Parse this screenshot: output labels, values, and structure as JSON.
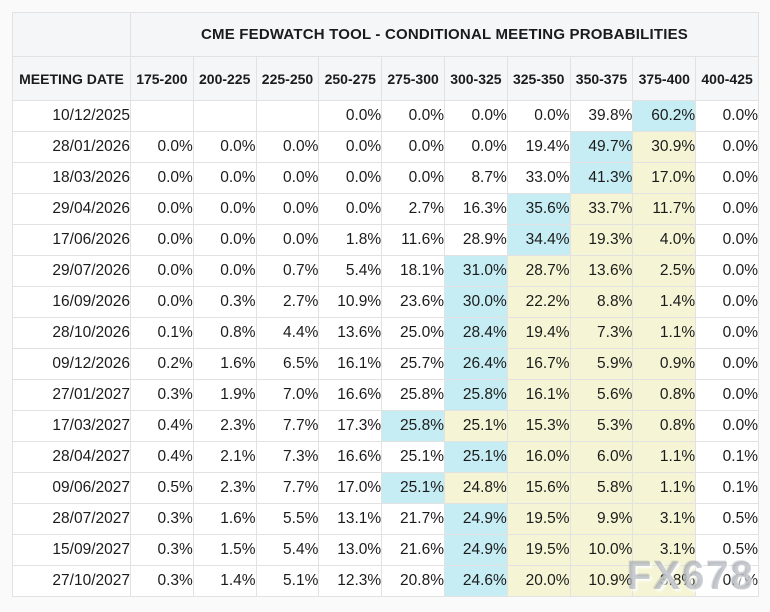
{
  "page": {
    "watermark": "FX678"
  },
  "colors": {
    "highlight_max": "#c6edf3",
    "highlight_tail": "#f5f5d6",
    "header_background": "#f5f6f7",
    "cell_background": "#ffffff",
    "border": "#e2e2e2",
    "text": "#1b1b1b"
  },
  "table": {
    "title": "CME FEDWATCH TOOL - CONDITIONAL MEETING PROBABILITIES",
    "date_header": "MEETING DATE",
    "rate_headers": [
      "175-200",
      "200-225",
      "225-250",
      "250-275",
      "275-300",
      "300-325",
      "325-350",
      "350-375",
      "375-400",
      "400-425"
    ],
    "rows": [
      {
        "date": "10/12/2025",
        "values": [
          "",
          "",
          "",
          "0.0%",
          "0.0%",
          "0.0%",
          "0.0%",
          "39.8%",
          "60.2%",
          "0.0%"
        ],
        "highlights": [
          null,
          null,
          null,
          null,
          null,
          null,
          null,
          null,
          "cyan",
          null
        ]
      },
      {
        "date": "28/01/2026",
        "values": [
          "0.0%",
          "0.0%",
          "0.0%",
          "0.0%",
          "0.0%",
          "0.0%",
          "19.4%",
          "49.7%",
          "30.9%",
          "0.0%"
        ],
        "highlights": [
          null,
          null,
          null,
          null,
          null,
          null,
          null,
          "cyan",
          "yellow",
          null
        ]
      },
      {
        "date": "18/03/2026",
        "values": [
          "0.0%",
          "0.0%",
          "0.0%",
          "0.0%",
          "0.0%",
          "8.7%",
          "33.0%",
          "41.3%",
          "17.0%",
          "0.0%"
        ],
        "highlights": [
          null,
          null,
          null,
          null,
          null,
          null,
          null,
          "cyan",
          "yellow",
          null
        ]
      },
      {
        "date": "29/04/2026",
        "values": [
          "0.0%",
          "0.0%",
          "0.0%",
          "0.0%",
          "2.7%",
          "16.3%",
          "35.6%",
          "33.7%",
          "11.7%",
          "0.0%"
        ],
        "highlights": [
          null,
          null,
          null,
          null,
          null,
          null,
          "cyan",
          "yellow",
          "yellow",
          null
        ]
      },
      {
        "date": "17/06/2026",
        "values": [
          "0.0%",
          "0.0%",
          "0.0%",
          "1.8%",
          "11.6%",
          "28.9%",
          "34.4%",
          "19.3%",
          "4.0%",
          "0.0%"
        ],
        "highlights": [
          null,
          null,
          null,
          null,
          null,
          null,
          "cyan",
          "yellow",
          "yellow",
          null
        ]
      },
      {
        "date": "29/07/2026",
        "values": [
          "0.0%",
          "0.0%",
          "0.7%",
          "5.4%",
          "18.1%",
          "31.0%",
          "28.7%",
          "13.6%",
          "2.5%",
          "0.0%"
        ],
        "highlights": [
          null,
          null,
          null,
          null,
          null,
          "cyan",
          "yellow",
          "yellow",
          "yellow",
          null
        ]
      },
      {
        "date": "16/09/2026",
        "values": [
          "0.0%",
          "0.3%",
          "2.7%",
          "10.9%",
          "23.6%",
          "30.0%",
          "22.2%",
          "8.8%",
          "1.4%",
          "0.0%"
        ],
        "highlights": [
          null,
          null,
          null,
          null,
          null,
          "cyan",
          "yellow",
          "yellow",
          "yellow",
          null
        ]
      },
      {
        "date": "28/10/2026",
        "values": [
          "0.1%",
          "0.8%",
          "4.4%",
          "13.6%",
          "25.0%",
          "28.4%",
          "19.4%",
          "7.3%",
          "1.1%",
          "0.0%"
        ],
        "highlights": [
          null,
          null,
          null,
          null,
          null,
          "cyan",
          "yellow",
          "yellow",
          "yellow",
          null
        ]
      },
      {
        "date": "09/12/2026",
        "values": [
          "0.2%",
          "1.6%",
          "6.5%",
          "16.1%",
          "25.7%",
          "26.4%",
          "16.7%",
          "5.9%",
          "0.9%",
          "0.0%"
        ],
        "highlights": [
          null,
          null,
          null,
          null,
          null,
          "cyan",
          "yellow",
          "yellow",
          "yellow",
          null
        ]
      },
      {
        "date": "27/01/2027",
        "values": [
          "0.3%",
          "1.9%",
          "7.0%",
          "16.6%",
          "25.8%",
          "25.8%",
          "16.1%",
          "5.6%",
          "0.8%",
          "0.0%"
        ],
        "highlights": [
          null,
          null,
          null,
          null,
          null,
          "cyan",
          "yellow",
          "yellow",
          "yellow",
          null
        ]
      },
      {
        "date": "17/03/2027",
        "values": [
          "0.4%",
          "2.3%",
          "7.7%",
          "17.3%",
          "25.8%",
          "25.1%",
          "15.3%",
          "5.3%",
          "0.8%",
          "0.0%"
        ],
        "highlights": [
          null,
          null,
          null,
          null,
          "cyan",
          "yellow",
          "yellow",
          "yellow",
          "yellow",
          null
        ]
      },
      {
        "date": "28/04/2027",
        "values": [
          "0.4%",
          "2.1%",
          "7.3%",
          "16.6%",
          "25.1%",
          "25.1%",
          "16.0%",
          "6.0%",
          "1.1%",
          "0.1%"
        ],
        "highlights": [
          null,
          null,
          null,
          null,
          null,
          "cyan",
          "yellow",
          "yellow",
          "yellow",
          null
        ]
      },
      {
        "date": "09/06/2027",
        "values": [
          "0.5%",
          "2.3%",
          "7.7%",
          "17.0%",
          "25.1%",
          "24.8%",
          "15.6%",
          "5.8%",
          "1.1%",
          "0.1%"
        ],
        "highlights": [
          null,
          null,
          null,
          null,
          "cyan",
          "yellow",
          "yellow",
          "yellow",
          "yellow",
          null
        ]
      },
      {
        "date": "28/07/2027",
        "values": [
          "0.3%",
          "1.6%",
          "5.5%",
          "13.1%",
          "21.7%",
          "24.9%",
          "19.5%",
          "9.9%",
          "3.1%",
          "0.5%"
        ],
        "highlights": [
          null,
          null,
          null,
          null,
          null,
          "cyan",
          "yellow",
          "yellow",
          "yellow",
          null
        ]
      },
      {
        "date": "15/09/2027",
        "values": [
          "0.3%",
          "1.5%",
          "5.4%",
          "13.0%",
          "21.6%",
          "24.9%",
          "19.5%",
          "10.0%",
          "3.1%",
          "0.5%"
        ],
        "highlights": [
          null,
          null,
          null,
          null,
          null,
          "cyan",
          "yellow",
          "yellow",
          "yellow",
          null
        ]
      },
      {
        "date": "27/10/2027",
        "values": [
          "0.3%",
          "1.4%",
          "5.1%",
          "12.3%",
          "20.8%",
          "24.6%",
          "20.0%",
          "10.9%",
          "3.8%",
          "0.7%"
        ],
        "highlights": [
          null,
          null,
          null,
          null,
          null,
          "cyan",
          "yellow",
          "yellow",
          "yellow",
          null
        ]
      }
    ]
  }
}
